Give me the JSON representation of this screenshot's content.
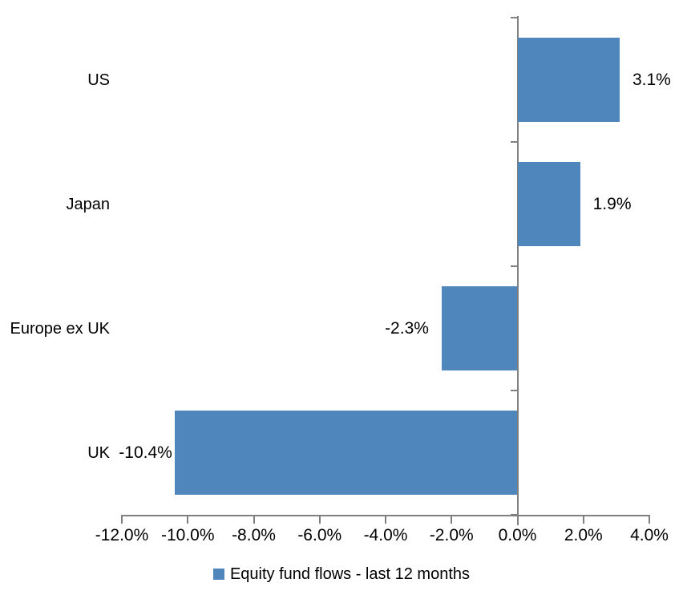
{
  "chart_data": {
    "type": "bar",
    "orientation": "horizontal",
    "title": "",
    "categories": [
      "US",
      "Japan",
      "Europe ex UK",
      "UK"
    ],
    "series": [
      {
        "name": "Equity fund flows - last 12 months",
        "values": [
          3.1,
          1.9,
          -2.3,
          -10.4
        ]
      }
    ],
    "value_labels": [
      "3.1%",
      "1.9%",
      "-2.3%",
      "-10.4%"
    ],
    "xlim": [
      -12,
      4
    ],
    "x_ticks": [
      {
        "value": -12,
        "label": "-12.0%"
      },
      {
        "value": -10,
        "label": "-10.0%"
      },
      {
        "value": -8,
        "label": "-8.0%"
      },
      {
        "value": -6,
        "label": "-6.0%"
      },
      {
        "value": -4,
        "label": "-4.0%"
      },
      {
        "value": -2,
        "label": "-2.0%"
      },
      {
        "value": 0,
        "label": "0.0%"
      },
      {
        "value": 2,
        "label": "2.0%"
      },
      {
        "value": 4,
        "label": "4.0%"
      }
    ],
    "grid": false,
    "legend_position": "bottom",
    "legend": {
      "label": "Equity fund flows - last 12 months",
      "marker_color": "#4f87bd"
    },
    "colors": {
      "bar": "#4f87bd",
      "axis": "#808080",
      "text": "#000000",
      "background": "#ffffff"
    }
  }
}
